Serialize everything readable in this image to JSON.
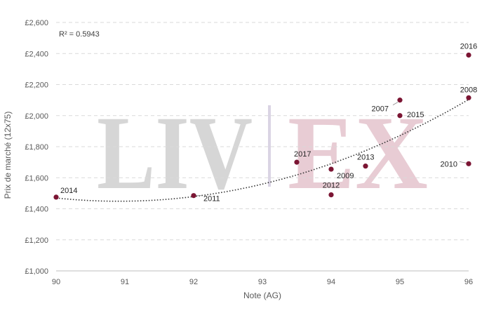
{
  "chart_data": {
    "type": "scatter",
    "title": "",
    "xlabel": "Note (AG)",
    "ylabel": "Prix de marché (12x75)",
    "xlim": [
      90,
      96
    ],
    "ylim": [
      1000,
      2600
    ],
    "x_ticks": [
      "90",
      "91",
      "92",
      "93",
      "94",
      "95",
      "96"
    ],
    "y_ticks": [
      "£1,000",
      "£1,200",
      "£1,400",
      "£1,600",
      "£1,800",
      "£2,000",
      "£2,200",
      "£2,400",
      "£2,600"
    ],
    "grid": "horizontal-dashed",
    "point_color": "#7b1533",
    "trendline": {
      "type": "polynomial-2",
      "style": "dotted",
      "r2_label": "R² = 0.5943"
    },
    "watermark": {
      "left": "LIV",
      "right": "EX",
      "left_color": "#d6d6d6",
      "right_color": "#e8ccd4",
      "divider_color": "#dad4e4"
    },
    "points": [
      {
        "label": "2014",
        "x": 90,
        "y": 1475
      },
      {
        "label": "2011",
        "x": 92,
        "y": 1485
      },
      {
        "label": "2017",
        "x": 93.5,
        "y": 1700
      },
      {
        "label": "2009",
        "x": 94,
        "y": 1655
      },
      {
        "label": "2012",
        "x": 94,
        "y": 1490
      },
      {
        "label": "2013",
        "x": 94.5,
        "y": 1675
      },
      {
        "label": "2007",
        "x": 95,
        "y": 2100
      },
      {
        "label": "2015",
        "x": 95,
        "y": 2000
      },
      {
        "label": "2016",
        "x": 96,
        "y": 2390
      },
      {
        "label": "2008",
        "x": 96,
        "y": 2115
      },
      {
        "label": "2010",
        "x": 96,
        "y": 1690
      }
    ]
  }
}
